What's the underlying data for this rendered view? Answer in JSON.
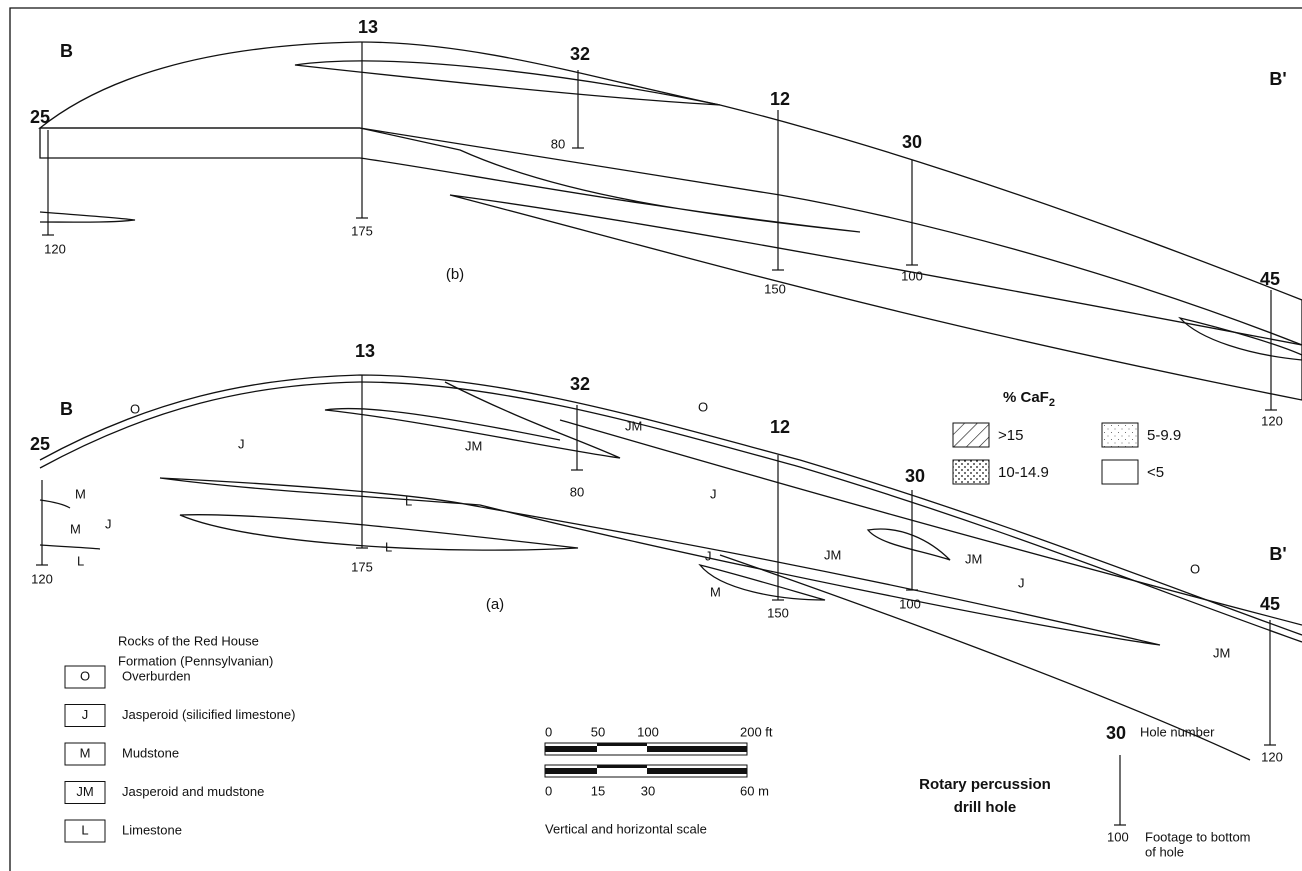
{
  "panel_b": {
    "label": "(b)",
    "left": "B",
    "right": "B'",
    "holes": [
      {
        "number": "25",
        "depth": "120"
      },
      {
        "number": "13",
        "depth": "175"
      },
      {
        "number": "32",
        "depth": "80"
      },
      {
        "number": "12",
        "depth": "150"
      },
      {
        "number": "30",
        "depth": "100"
      },
      {
        "number": "45",
        "depth": "120"
      }
    ]
  },
  "panel_a": {
    "label": "(a)",
    "left": "B",
    "right": "B'",
    "holes": [
      {
        "number": "25",
        "depth": "120"
      },
      {
        "number": "13",
        "depth": "175"
      },
      {
        "number": "32",
        "depth": "80"
      },
      {
        "number": "12",
        "depth": "150"
      },
      {
        "number": "30",
        "depth": "100"
      },
      {
        "number": "45",
        "depth": "120"
      }
    ],
    "rock_labels": [
      "O",
      "J",
      "JM",
      "JM",
      "O",
      "M",
      "J",
      "M",
      "L",
      "L",
      "L",
      "J",
      "J",
      "JM",
      "JM",
      "M",
      "J",
      "O",
      "JM"
    ]
  },
  "caf2_legend": {
    "title": "% CaF",
    "title_sub": "2",
    "items": [
      ">15",
      "10-14.9",
      "5-9.9",
      "<5"
    ]
  },
  "rock_legend": {
    "title_lines": [
      "Rocks of the Red House",
      "Formation (Pennsylvanian)"
    ],
    "items": [
      {
        "code": "O",
        "name": "Overburden"
      },
      {
        "code": "J",
        "name": "Jasperoid (silicified limestone)"
      },
      {
        "code": "M",
        "name": "Mudstone"
      },
      {
        "code": "JM",
        "name": "Jasperoid and mudstone"
      },
      {
        "code": "L",
        "name": "Limestone"
      }
    ]
  },
  "scale": {
    "ft": [
      "0",
      "50",
      "100",
      "200 ft"
    ],
    "m": [
      "0",
      "15",
      "30",
      "60 m"
    ],
    "caption": "Vertical and horizontal scale"
  },
  "hole_key": {
    "title_lines": [
      "Rotary percussion",
      "drill hole"
    ],
    "number": "30",
    "number_text": "Hole number",
    "depth": "100",
    "depth_lines": [
      "Footage to bottom",
      "of hole"
    ]
  }
}
